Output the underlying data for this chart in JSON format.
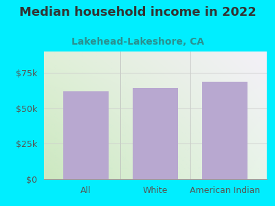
{
  "title": "Median household income in 2022",
  "subtitle": "Lakehead-Lakeshore, CA",
  "categories": [
    "All",
    "White",
    "American Indian"
  ],
  "values": [
    62000,
    64500,
    68500
  ],
  "bar_color": "#b8a8d0",
  "background_color": "#00eeff",
  "title_color": "#333333",
  "subtitle_color": "#2a9090",
  "tick_color": "#555555",
  "title_fontsize": 13,
  "subtitle_fontsize": 10,
  "tick_label_fontsize": 9,
  "ylim": [
    0,
    90000
  ],
  "yticks": [
    0,
    25000,
    50000,
    75000
  ],
  "ytick_labels": [
    "$0",
    "$25k",
    "$50k",
    "$75k"
  ],
  "grid_color": "#cccccc",
  "plot_bg_colors": [
    "#cce8c0",
    "#f0f0fa"
  ],
  "bar_width": 0.65
}
